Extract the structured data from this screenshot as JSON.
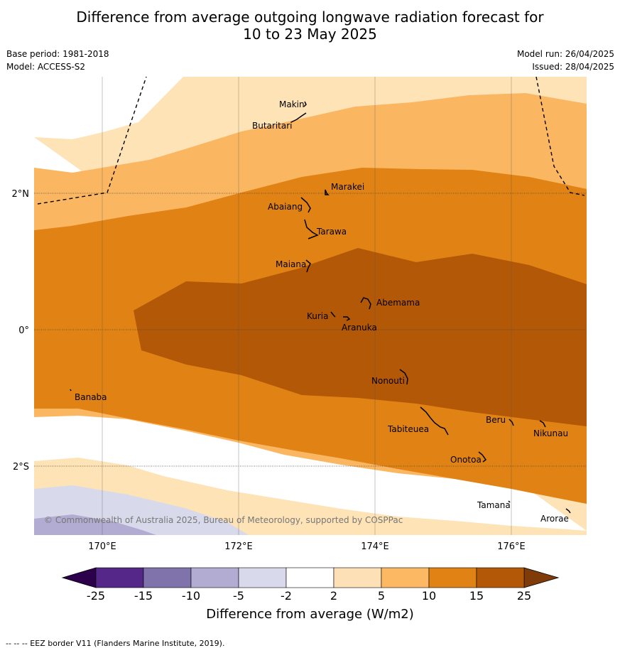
{
  "header": {
    "title_line1": "Difference from average outgoing longwave radiation forecast for",
    "title_line2": "10 to 23 May 2025",
    "base_period": "Base period: 1981-2018",
    "model": "Model: ACCESS-S2",
    "model_run": "Model run: 26/04/2025",
    "issued": "Issued: 28/04/2025"
  },
  "map": {
    "lat_labels": [
      "2°N",
      "0°",
      "2°S"
    ],
    "lon_labels": [
      "170°E",
      "172°E",
      "174°E",
      "176°E"
    ],
    "copyright": "© Commonwealth of Australia 2025, Bureau of Meteorology, supported by COSPPac",
    "islands": [
      "Makin",
      "Butaritari",
      "Marakei",
      "Abaiang",
      "Tarawa",
      "Maiana",
      "Abemama",
      "Kuria",
      "Aranuka",
      "Nonouti",
      "Banaba",
      "Tabiteuea",
      "Beru",
      "Nikunau",
      "Onotoa",
      "Tamana",
      "Arorae"
    ],
    "fill_colors": {
      "2_to_5": "#fde3b6",
      "5_to_10": "#fbb662",
      "10_to_15": "#e08214",
      "15_to_25": "#b35806",
      "-5_to_-2": "#d8daeb",
      "-10_to_-5": "#b2abd2"
    }
  },
  "colorbar": {
    "ticks": [
      "-25",
      "-15",
      "-10",
      "-5",
      "-2",
      "2",
      "5",
      "10",
      "15",
      "25"
    ],
    "colors": [
      "#542788",
      "#8073ac",
      "#b2abd2",
      "#d8daeb",
      "#ffffff",
      "#fee0b6",
      "#fdb863",
      "#e08214",
      "#b35806"
    ],
    "under_color": "#2d004b",
    "over_color": "#7f3b08",
    "label": "Difference from average (W/m2)"
  },
  "footnote": "--  --  -- EEZ border V11 (Flanders Marine Institute, 2019)."
}
